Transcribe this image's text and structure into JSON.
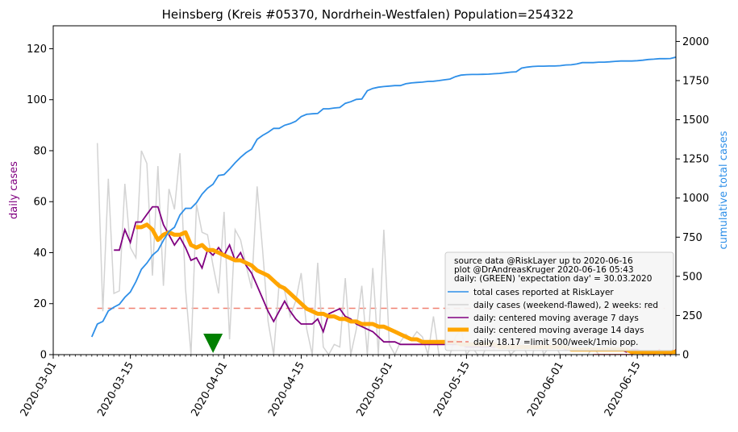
{
  "chart_data": {
    "type": "line",
    "title": "Heinsberg (Kreis #05370, Nordrhein-Westfalen) Population=254322",
    "ylabel_left": "daily cases",
    "ylabel_right": "cumulative total cases",
    "x_axis": {
      "type": "date",
      "range": [
        "2020-03-01",
        "2020-06-22"
      ],
      "ticks": [
        "2020-03-01",
        "2020-03-15",
        "2020-04-01",
        "2020-04-15",
        "2020-05-01",
        "2020-05-15",
        "2020-06-01",
        "2020-06-15"
      ]
    },
    "y_left": {
      "range": [
        0,
        129
      ],
      "ticks": [
        0,
        20,
        40,
        60,
        80,
        100,
        120
      ]
    },
    "y_right": {
      "range": [
        0,
        2100
      ],
      "ticks": [
        0,
        250,
        500,
        750,
        1000,
        1250,
        1500,
        1750,
        2000
      ]
    },
    "legend": {
      "position": "lower-right",
      "header": [
        "source data @RiskLayer up to 2020-06-16",
        "plot @DrAndreasKruger 2020-06-16 05:43",
        "daily: (GREEN) 'expectation day' = 30.03.2020"
      ],
      "entries": [
        "total cases reported at RiskLayer",
        "daily cases (weekend-flawed), 2 weeks: red",
        "daily: centered moving average 7 days",
        "daily: centered moving average 14 days",
        "daily 18.17 =limit 500/week/1mio pop."
      ]
    },
    "limit_line": {
      "value": 18.17,
      "color": "#f08070"
    },
    "expectation_day": {
      "date": "2020-03-30",
      "color": "#008000"
    },
    "colors": {
      "cumulative": "#2e8fe8",
      "daily": "#d3d3d3",
      "daily_recent": "#ff0000",
      "ma7": "#800080",
      "ma14": "#ffa500"
    },
    "series": {
      "cumulative": {
        "start": "2020-03-08",
        "values": [
          113,
          195,
          212,
          279,
          303,
          321,
          366,
          400,
          466,
          545,
          584,
          635,
          665,
          730,
          786,
          813,
          892,
          934,
          934,
          970,
          1025,
          1063,
          1088,
          1144,
          1150,
          1185,
          1225,
          1260,
          1290,
          1312,
          1375,
          1400,
          1420,
          1445,
          1445,
          1465,
          1475,
          1490,
          1520,
          1535,
          1538,
          1540,
          1570,
          1570,
          1575,
          1578,
          1605,
          1615,
          1630,
          1632,
          1685,
          1700,
          1708,
          1712,
          1715,
          1718,
          1718,
          1730,
          1735,
          1738,
          1740,
          1745,
          1746,
          1750,
          1755,
          1760,
          1775,
          1785,
          1788,
          1789,
          1789,
          1790,
          1791,
          1794,
          1796,
          1800,
          1804,
          1806,
          1830,
          1836,
          1840,
          1842,
          1842,
          1843,
          1843,
          1845,
          1850,
          1851,
          1856,
          1865,
          1865,
          1865,
          1868,
          1868,
          1870,
          1873,
          1875,
          1875,
          1875,
          1877,
          1880,
          1885,
          1887,
          1890,
          1890,
          1891,
          1900
        ]
      },
      "daily": {
        "start": "2020-03-09",
        "values": [
          83,
          17,
          69,
          24,
          25,
          67,
          42,
          38,
          80,
          75,
          31,
          74,
          27,
          65,
          57,
          79,
          26,
          0,
          59,
          48,
          47,
          35,
          24,
          56,
          6,
          49,
          45,
          35,
          26,
          66,
          41,
          13,
          0,
          28,
          25,
          15,
          21,
          32,
          10,
          0,
          36,
          3,
          0,
          4,
          3,
          30,
          0,
          10,
          27,
          0,
          34,
          0,
          49,
          4,
          0,
          5,
          8,
          6,
          9,
          7,
          0,
          15,
          0,
          0,
          0,
          7,
          10,
          0,
          3,
          0,
          0,
          5,
          2,
          11,
          5,
          0,
          2,
          5,
          0,
          0,
          9,
          0,
          3,
          4,
          0,
          0,
          0,
          0,
          0,
          0,
          3,
          0,
          0,
          0,
          0,
          0,
          0,
          0,
          0,
          0,
          0,
          0,
          0,
          0,
          0,
          0
        ],
        "recent_values": [
          0,
          0,
          0,
          0,
          0,
          0,
          0,
          0,
          2,
          0,
          0,
          0,
          2,
          0,
          0,
          2
        ]
      },
      "ma7": {
        "start": "2020-03-12",
        "values": [
          41,
          41,
          49,
          44,
          52,
          52,
          55,
          58,
          58,
          51,
          47,
          43,
          46,
          42,
          37,
          38,
          34,
          41,
          39,
          42,
          39,
          43,
          37,
          40,
          35,
          32,
          27,
          22,
          17,
          13,
          17,
          21,
          17,
          14,
          12,
          12,
          12,
          14,
          9,
          16,
          17,
          18,
          15,
          14,
          12,
          11,
          10,
          9,
          7,
          5,
          5,
          5,
          4,
          4,
          4,
          4,
          4,
          4,
          4,
          4,
          4,
          4,
          4,
          4,
          3,
          3,
          3,
          3,
          3,
          3,
          3,
          3,
          3,
          3,
          3,
          3,
          3,
          3,
          3,
          3,
          3,
          3,
          2,
          2,
          2,
          2,
          2,
          2,
          2,
          2,
          2,
          2,
          2,
          1,
          2,
          2,
          1,
          1,
          1,
          1,
          1,
          1,
          1,
          1,
          1,
          1
        ]
      },
      "ma14": {
        "start": "2020-03-16",
        "values": [
          50,
          50,
          51,
          49,
          45,
          47,
          48,
          47,
          47,
          48,
          43,
          42,
          43,
          41,
          41,
          40,
          39,
          38,
          37,
          37,
          36,
          35,
          33,
          32,
          31,
          29,
          27,
          26,
          24,
          22,
          20,
          18,
          17,
          16,
          16,
          15,
          15,
          14,
          14,
          13,
          13,
          12,
          12,
          12,
          11,
          11,
          10,
          9,
          8,
          7,
          6,
          6,
          5,
          5,
          5,
          5,
          5,
          5,
          5,
          4,
          4,
          4,
          4,
          4,
          4,
          4,
          3,
          3,
          3,
          3,
          3,
          3,
          3,
          3,
          3,
          3,
          3,
          3,
          3,
          2,
          2,
          2,
          2,
          2,
          2,
          2,
          2,
          2,
          2,
          2,
          1,
          1,
          1,
          1,
          1,
          1,
          1,
          1,
          1,
          1
        ]
      }
    }
  }
}
